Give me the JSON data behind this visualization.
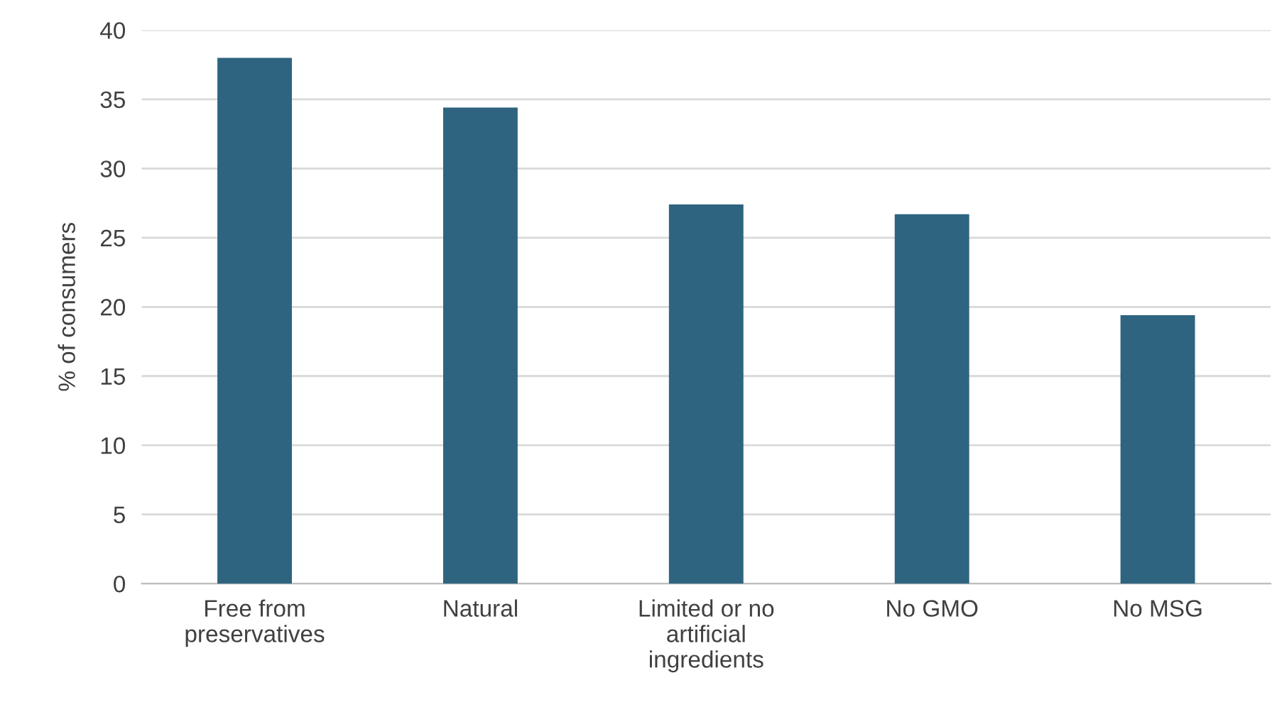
{
  "chart_data": {
    "type": "bar",
    "ylabel": "% of consumers",
    "categories": [
      "Free from\npreservatives",
      "Natural",
      "Limited or no\nartificial\ningredients",
      "No GMO",
      "No MSG"
    ],
    "values": [
      38.0,
      34.4,
      27.4,
      26.7,
      19.4
    ],
    "color": "#2e6480",
    "ylim": [
      0,
      40
    ],
    "yticks": [
      0,
      5,
      10,
      15,
      20,
      25,
      30,
      35,
      40
    ],
    "grid": "y"
  }
}
